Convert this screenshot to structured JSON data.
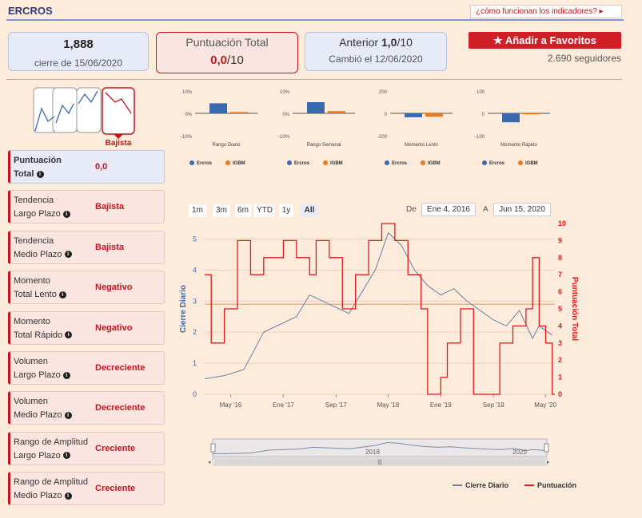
{
  "header": {
    "brand": "ERCROS",
    "help_link": "¿cómo funcionan los indicadores?",
    "help_arrow": "▸"
  },
  "cards": {
    "close": {
      "value": "1,888",
      "caption": "cierre de 15/06/2020"
    },
    "score": {
      "title": "Puntuación Total",
      "value": "0,0",
      "suffix": "/10"
    },
    "previous": {
      "title": "Anterior",
      "value": "1,0",
      "suffix": "/10",
      "caption": "Cambió el 12/06/2020"
    }
  },
  "favorites": {
    "label": "Añadir a Favoritos",
    "followers": "2.690 seguidores"
  },
  "trend_badge": {
    "label": "Bajista",
    "color": "#c0161e"
  },
  "indicators": [
    {
      "label1": "Puntuación",
      "label2": "Total",
      "value": "0,0"
    },
    {
      "label1": "Tendencia",
      "label2": "Largo Plazo",
      "value": "Bajista"
    },
    {
      "label1": "Tendencia",
      "label2": "Medio Plazo",
      "value": "Bajista"
    },
    {
      "label1": "Momento",
      "label2": "Total Lento",
      "value": "Negativo"
    },
    {
      "label1": "Momento",
      "label2": "Total Rápido",
      "value": "Negativo"
    },
    {
      "label1": "Volumen",
      "label2": "Largo Plazo",
      "value": "Decreciente"
    },
    {
      "label1": "Volumen",
      "label2": "Medio Plazo",
      "value": "Decreciente"
    },
    {
      "label1": "Rango de Amplitud",
      "label2": "Largo Plazo",
      "value": "Creciente"
    },
    {
      "label1": "Rango de Amplitud",
      "label2": "Medio Plazo",
      "value": "Creciente"
    }
  ],
  "range_selector": {
    "buttons": [
      "1m",
      "3m",
      "6m",
      "YTD",
      "1y",
      "All"
    ],
    "active": "All",
    "from_label": "De",
    "from_value": "Ene 4, 2016",
    "to_label": "A",
    "to_value": "Jun 15, 2020"
  },
  "navigator": {
    "labels": [
      "2018",
      "2020"
    ]
  },
  "chart_data": [
    {
      "type": "bar",
      "xlabel": "Rango Diario",
      "yticks": [
        "10%",
        "0%",
        "-10%"
      ],
      "ylim": [
        -10,
        10
      ],
      "series": [
        {
          "name": "Ercros",
          "values": [
            4.5
          ]
        },
        {
          "name": "IGBM",
          "values": [
            0.6
          ]
        }
      ],
      "colors": [
        "#3a6aae",
        "#ec7a1c"
      ]
    },
    {
      "type": "bar",
      "xlabel": "Rango Semanal",
      "yticks": [
        "10%",
        "0%",
        "-10%"
      ],
      "ylim": [
        -10,
        10
      ],
      "series": [
        {
          "name": "Ercros",
          "values": [
            5
          ]
        },
        {
          "name": "IGBM",
          "values": [
            1
          ]
        }
      ],
      "colors": [
        "#3a6aae",
        "#ec7a1c"
      ]
    },
    {
      "type": "bar",
      "xlabel": "Momento Lento",
      "yticks": [
        "200",
        "0",
        "-200"
      ],
      "ylim": [
        -200,
        200
      ],
      "series": [
        {
          "name": "Ercros",
          "values": [
            -35
          ]
        },
        {
          "name": "IGBM",
          "values": [
            -30
          ]
        }
      ],
      "colors": [
        "#3a6aae",
        "#ec7a1c"
      ]
    },
    {
      "type": "bar",
      "xlabel": "Momento Rápido",
      "yticks": [
        "100",
        "0",
        "-100"
      ],
      "ylim": [
        -100,
        100
      ],
      "series": [
        {
          "name": "Ercros",
          "values": [
            -40
          ]
        },
        {
          "name": "IGBM",
          "values": [
            0
          ]
        }
      ],
      "colors": [
        "#3a6aae",
        "#ec7a1c"
      ]
    },
    {
      "type": "line",
      "ylabel": "Cierre Diario",
      "y2label": "Puntuación Total",
      "ylim": [
        0,
        5.5
      ],
      "y2lim": [
        0,
        10
      ],
      "xticks": [
        "May '16",
        "Ene '17",
        "Sep '17",
        "May '18",
        "Ene '19",
        "Sep '19",
        "May '20"
      ],
      "yticks": [
        0,
        1,
        2,
        3,
        4,
        5
      ],
      "y2ticks": [
        0,
        1,
        2,
        3,
        4,
        5,
        6,
        7,
        8,
        9,
        10
      ],
      "ref_line": 2.9,
      "series": [
        {
          "name": "Cierre Diario",
          "color": "#6a82a8",
          "axis": "left",
          "x": [
            "2016-01",
            "2016-04",
            "2016-07",
            "2016-10",
            "2017-01",
            "2017-03",
            "2017-05",
            "2017-07",
            "2017-09",
            "2017-11",
            "2018-01",
            "2018-03",
            "2018-05",
            "2018-07",
            "2018-09",
            "2018-11",
            "2019-01",
            "2019-03",
            "2019-05",
            "2019-07",
            "2019-09",
            "2019-11",
            "2020-01",
            "2020-03",
            "2020-04",
            "2020-06"
          ],
          "y": [
            0.5,
            0.6,
            0.8,
            2.0,
            2.3,
            2.5,
            3.2,
            3.0,
            2.8,
            2.6,
            3.3,
            4.0,
            5.2,
            4.8,
            4.0,
            3.5,
            3.2,
            3.4,
            3.0,
            2.7,
            2.4,
            2.2,
            2.7,
            1.8,
            2.2,
            1.9
          ]
        },
        {
          "name": "Puntuación",
          "color": "#e31a1c",
          "axis": "right",
          "x": [
            "2016-01",
            "2016-02",
            "2016-04",
            "2016-06",
            "2016-08",
            "2016-10",
            "2017-01",
            "2017-03",
            "2017-05",
            "2017-06",
            "2017-08",
            "2017-10",
            "2017-12",
            "2018-02",
            "2018-04",
            "2018-06",
            "2018-08",
            "2018-10",
            "2018-11",
            "2019-01",
            "2019-02",
            "2019-04",
            "2019-06",
            "2019-08",
            "2019-10",
            "2019-12",
            "2020-02",
            "2020-03",
            "2020-04",
            "2020-05",
            "2020-06"
          ],
          "y": [
            7,
            3,
            5,
            9,
            7,
            8,
            9,
            8,
            7,
            9,
            8,
            5,
            7,
            9,
            10,
            9,
            7,
            5,
            0,
            1,
            3,
            5,
            0,
            0,
            3,
            4,
            5,
            8,
            4,
            3,
            0
          ]
        }
      ],
      "legend": {
        "position": "bottom-right",
        "entries": [
          "Cierre Diario",
          "Puntuación"
        ]
      }
    }
  ]
}
